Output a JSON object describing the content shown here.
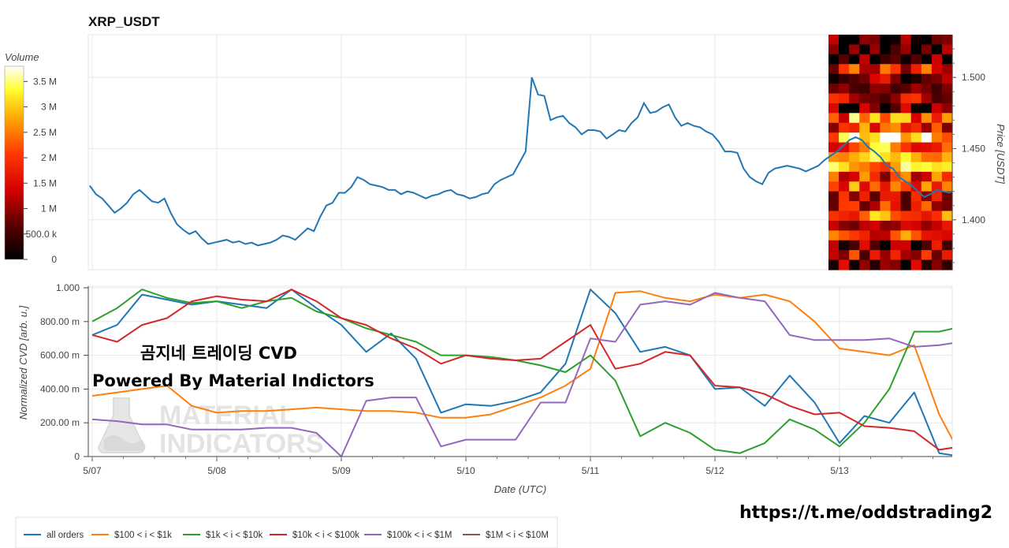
{
  "title": "XRP_USDT",
  "overlay": {
    "line1": "곰지네 트레이딩 CVD",
    "line2": "Powered By Material Indictors"
  },
  "watermark": {
    "line1": "MATERIAL",
    "line2": "INDICATORS"
  },
  "link": "https://t.me/oddstrading2",
  "colorbar": {
    "title": "Volume",
    "ticks": [
      "3.5 M",
      "3 M",
      "2.5 M",
      "2 M",
      "1.5 M",
      "1 M",
      "500.0 k",
      "0"
    ]
  },
  "price_axis": {
    "label": "Price [USDT]",
    "ticks": [
      "1.500",
      "1.450",
      "1.400"
    ]
  },
  "cvd_axis": {
    "label": "Normalized CVD [arb. u.]",
    "ticks": [
      "1.000",
      "800.00 m",
      "600.00 m",
      "400.00 m",
      "200.00 m",
      "0"
    ]
  },
  "x_axis": {
    "label": "Date (UTC)",
    "ticks": [
      "5/07",
      "5/08",
      "5/09",
      "5/10",
      "5/11",
      "5/12",
      "5/13"
    ]
  },
  "chart_data": [
    {
      "type": "line",
      "title": "XRP_USDT",
      "xlabel": "",
      "ylabel": "Price [USDT]",
      "x_range": [
        "5/07",
        "5/13"
      ],
      "ylim": [
        1.365,
        1.53
      ],
      "grid": true,
      "series": [
        {
          "color": "#1f77b4",
          "x": [
            -0.02,
            0.03,
            0.08,
            0.13,
            0.18,
            0.23,
            0.28,
            0.33,
            0.38,
            0.43,
            0.48,
            0.53,
            0.58,
            0.63,
            0.68,
            0.73,
            0.78,
            0.83,
            0.88,
            0.93,
            0.98,
            1.03,
            1.08,
            1.13,
            1.18,
            1.23,
            1.28,
            1.33,
            1.38,
            1.43,
            1.48,
            1.53,
            1.58,
            1.63,
            1.68,
            1.73,
            1.78,
            1.83,
            1.88,
            1.93,
            1.98,
            2.03,
            2.08,
            2.13,
            2.18,
            2.23,
            2.28,
            2.33,
            2.38,
            2.43,
            2.48,
            2.53,
            2.58,
            2.63,
            2.68,
            2.73,
            2.78,
            2.83,
            2.88,
            2.93,
            2.98,
            3.03,
            3.08,
            3.13,
            3.18,
            3.23,
            3.28,
            3.33,
            3.38,
            3.43,
            3.48,
            3.53,
            3.58,
            3.63,
            3.68,
            3.73,
            3.78,
            3.83,
            3.88,
            3.93,
            3.98,
            4.03,
            4.08,
            4.13,
            4.18,
            4.23,
            4.28,
            4.33,
            4.38,
            4.43,
            4.48,
            4.53,
            4.58,
            4.63,
            4.68,
            4.73,
            4.78,
            4.83,
            4.88,
            4.93,
            4.98,
            5.03,
            5.08,
            5.13,
            5.18,
            5.23,
            5.28,
            5.33,
            5.38,
            5.43,
            5.48,
            5.53,
            5.58,
            5.63,
            5.68,
            5.73,
            5.78,
            5.83,
            5.88,
            5.93,
            5.98,
            6.03,
            6.08,
            6.13,
            6.18,
            6.23,
            6.28,
            6.33,
            6.38,
            6.43,
            6.48,
            6.53,
            6.58,
            6.63,
            6.68,
            6.73,
            6.78,
            6.83,
            6.88,
            6.93,
            6.98
          ],
          "values": [
            1.424,
            1.418,
            1.415,
            1.41,
            1.405,
            1.408,
            1.412,
            1.418,
            1.421,
            1.417,
            1.413,
            1.412,
            1.415,
            1.405,
            1.397,
            1.393,
            1.39,
            1.392,
            1.387,
            1.383,
            1.384,
            1.385,
            1.386,
            1.384,
            1.385,
            1.383,
            1.384,
            1.382,
            1.383,
            1.384,
            1.386,
            1.389,
            1.388,
            1.386,
            1.39,
            1.394,
            1.392,
            1.402,
            1.41,
            1.412,
            1.419,
            1.419,
            1.423,
            1.43,
            1.428,
            1.425,
            1.424,
            1.423,
            1.421,
            1.421,
            1.418,
            1.42,
            1.419,
            1.417,
            1.415,
            1.417,
            1.418,
            1.42,
            1.421,
            1.418,
            1.417,
            1.415,
            1.416,
            1.418,
            1.419,
            1.425,
            1.428,
            1.43,
            1.432,
            1.44,
            1.448,
            1.5,
            1.488,
            1.487,
            1.47,
            1.472,
            1.473,
            1.468,
            1.465,
            1.46,
            1.463,
            1.463,
            1.462,
            1.457,
            1.46,
            1.463,
            1.462,
            1.468,
            1.472,
            1.482,
            1.475,
            1.476,
            1.479,
            1.481,
            1.472,
            1.466,
            1.468,
            1.466,
            1.465,
            1.462,
            1.46,
            1.455,
            1.448,
            1.448,
            1.447,
            1.436,
            1.43,
            1.427,
            1.425,
            1.433,
            1.436,
            1.437,
            1.438,
            1.437,
            1.436,
            1.434,
            1.436,
            1.438,
            1.442,
            1.445,
            1.448,
            1.452,
            1.456,
            1.458,
            1.456,
            1.451,
            1.448,
            1.444,
            1.438,
            1.436,
            1.43,
            1.427,
            1.424,
            1.42,
            1.416,
            1.418,
            1.421,
            1.42,
            1.419,
            1.421,
            1.422
          ]
        }
      ]
    },
    {
      "type": "heatmap",
      "title": "",
      "colorbar_title": "Volume",
      "colorbar_range": [
        0,
        3800000
      ],
      "x_range": [
        "5/12 23:00",
        "5/13 22:00"
      ],
      "y_range_price": [
        1.36,
        1.535
      ],
      "rows": 24,
      "cols": 12,
      "note": "order-book liquidity density by price level"
    },
    {
      "type": "line",
      "title": "",
      "xlabel": "Date (UTC)",
      "ylabel": "Normalized CVD [arb. u.]",
      "ylim": [
        0,
        1.0
      ],
      "grid": true,
      "series": [
        {
          "name": "all orders",
          "color": "#1f77b4",
          "x": [
            0,
            0.2,
            0.4,
            0.6,
            0.8,
            1.0,
            1.2,
            1.4,
            1.6,
            1.8,
            2.0,
            2.2,
            2.4,
            2.6,
            2.8,
            3.0,
            3.2,
            3.4,
            3.6,
            3.8,
            4.0,
            4.2,
            4.4,
            4.6,
            4.8,
            5.0,
            5.2,
            5.4,
            5.6,
            5.8,
            6.0,
            6.2,
            6.4,
            6.6,
            6.8,
            6.98
          ],
          "values": [
            0.72,
            0.78,
            0.96,
            0.93,
            0.9,
            0.92,
            0.9,
            0.88,
            0.99,
            0.88,
            0.78,
            0.62,
            0.73,
            0.58,
            0.26,
            0.31,
            0.3,
            0.33,
            0.38,
            0.55,
            0.99,
            0.85,
            0.62,
            0.65,
            0.6,
            0.4,
            0.41,
            0.3,
            0.48,
            0.32,
            0.08,
            0.24,
            0.2,
            0.38,
            0.02,
            0.0
          ]
        },
        {
          "name": "$100 < i < $1k",
          "color": "#ff7f0e",
          "x": [
            0,
            0.2,
            0.4,
            0.6,
            0.8,
            1.0,
            1.2,
            1.4,
            1.6,
            1.8,
            2.0,
            2.2,
            2.4,
            2.6,
            2.8,
            3.0,
            3.2,
            3.4,
            3.6,
            3.8,
            4.0,
            4.2,
            4.4,
            4.6,
            4.8,
            5.0,
            5.2,
            5.4,
            5.6,
            5.8,
            6.0,
            6.2,
            6.4,
            6.6,
            6.8,
            6.98
          ],
          "values": [
            0.36,
            0.38,
            0.4,
            0.42,
            0.3,
            0.26,
            0.27,
            0.27,
            0.28,
            0.29,
            0.28,
            0.27,
            0.27,
            0.26,
            0.23,
            0.23,
            0.25,
            0.3,
            0.35,
            0.42,
            0.52,
            0.97,
            0.98,
            0.94,
            0.92,
            0.96,
            0.94,
            0.96,
            0.92,
            0.8,
            0.64,
            0.62,
            0.6,
            0.66,
            0.25,
            0.0
          ]
        },
        {
          "name": "$1k < i < $10k",
          "color": "#2ca02c",
          "x": [
            0,
            0.2,
            0.4,
            0.6,
            0.8,
            1.0,
            1.2,
            1.4,
            1.6,
            1.8,
            2.0,
            2.2,
            2.4,
            2.6,
            2.8,
            3.0,
            3.2,
            3.4,
            3.6,
            3.8,
            4.0,
            4.2,
            4.4,
            4.6,
            4.8,
            5.0,
            5.2,
            5.4,
            5.6,
            5.8,
            6.0,
            6.2,
            6.4,
            6.6,
            6.8,
            6.98
          ],
          "values": [
            0.8,
            0.88,
            0.99,
            0.94,
            0.91,
            0.92,
            0.88,
            0.92,
            0.94,
            0.86,
            0.82,
            0.76,
            0.72,
            0.68,
            0.6,
            0.6,
            0.59,
            0.57,
            0.54,
            0.5,
            0.6,
            0.45,
            0.12,
            0.2,
            0.14,
            0.04,
            0.02,
            0.08,
            0.22,
            0.16,
            0.06,
            0.2,
            0.4,
            0.74,
            0.74,
            0.77
          ]
        },
        {
          "name": "$10k < i < $100k",
          "color": "#d62728",
          "x": [
            0,
            0.2,
            0.4,
            0.6,
            0.8,
            1.0,
            1.2,
            1.4,
            1.6,
            1.8,
            2.0,
            2.2,
            2.4,
            2.6,
            2.8,
            3.0,
            3.2,
            3.4,
            3.6,
            3.8,
            4.0,
            4.2,
            4.4,
            4.6,
            4.8,
            5.0,
            5.2,
            5.4,
            5.6,
            5.8,
            6.0,
            6.2,
            6.4,
            6.6,
            6.8,
            6.98
          ],
          "values": [
            0.72,
            0.68,
            0.78,
            0.82,
            0.92,
            0.95,
            0.93,
            0.92,
            0.99,
            0.92,
            0.82,
            0.78,
            0.7,
            0.64,
            0.55,
            0.6,
            0.58,
            0.57,
            0.58,
            0.68,
            0.78,
            0.52,
            0.55,
            0.62,
            0.6,
            0.42,
            0.41,
            0.37,
            0.3,
            0.25,
            0.26,
            0.18,
            0.17,
            0.15,
            0.04,
            0.06
          ]
        },
        {
          "name": "$100k < i < $1M",
          "color": "#9467bd",
          "x": [
            0,
            0.2,
            0.4,
            0.6,
            0.8,
            1.0,
            1.2,
            1.4,
            1.6,
            1.8,
            2.0,
            2.2,
            2.4,
            2.6,
            2.8,
            3.0,
            3.2,
            3.4,
            3.6,
            3.8,
            4.0,
            4.2,
            4.4,
            4.6,
            4.8,
            5.0,
            5.2,
            5.4,
            5.6,
            5.8,
            6.0,
            6.2,
            6.4,
            6.6,
            6.8,
            6.98
          ],
          "values": [
            0.22,
            0.21,
            0.19,
            0.19,
            0.16,
            0.16,
            0.16,
            0.17,
            0.17,
            0.14,
            0.0,
            0.33,
            0.35,
            0.35,
            0.06,
            0.1,
            0.1,
            0.1,
            0.32,
            0.32,
            0.7,
            0.68,
            0.9,
            0.92,
            0.9,
            0.97,
            0.94,
            0.92,
            0.72,
            0.69,
            0.69,
            0.69,
            0.7,
            0.65,
            0.66,
            0.68
          ]
        },
        {
          "name": "$1M < i < $10M",
          "color": "#8c564b",
          "x": [],
          "values": []
        }
      ]
    }
  ]
}
